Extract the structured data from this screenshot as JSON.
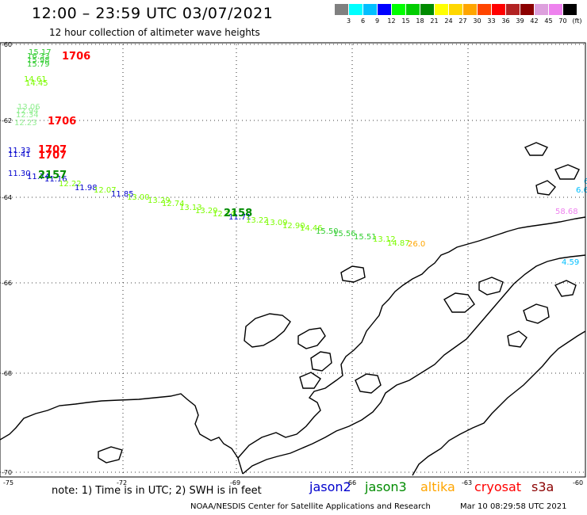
{
  "title": "12:00 – 23:59 UTC 03/07/2021",
  "subtitle": "12 hour collection of altimeter wave heights",
  "scale": {
    "labels": [
      "3",
      "6",
      "9",
      "12",
      "15",
      "18",
      "21",
      "24",
      "27",
      "30",
      "33",
      "36",
      "39",
      "42",
      "45",
      "70",
      "(ft)"
    ],
    "colors": [
      "#808080",
      "#00ffff",
      "#00bfff",
      "#0000ff",
      "#00ff00",
      "#00cd00",
      "#008b00",
      "#ffff00",
      "#ffd700",
      "#ffa500",
      "#ff4500",
      "#ff0000",
      "#b22222",
      "#8b0000",
      "#dda0dd",
      "#ee82ee",
      "#000000"
    ]
  },
  "axes": {
    "lat_labels": [
      "-60",
      "-62",
      "-64",
      "-66",
      "-68",
      "-70"
    ],
    "lon_labels": [
      "-75",
      "-72",
      "-69",
      "-66",
      "-63",
      "-60"
    ]
  },
  "observations": [
    {
      "text": "15.17",
      "color": "#32cd32"
    },
    {
      "text": "16.33",
      "color": "#32cd32"
    },
    {
      "text": "15.98",
      "color": "#32cd32"
    },
    {
      "text": "15.79",
      "color": "#32cd32"
    },
    {
      "text": "14.61",
      "color": "#7cfc00"
    },
    {
      "text": "14.45",
      "color": "#7cfc00"
    },
    {
      "text": "13.06",
      "color": "#90ee90"
    },
    {
      "text": "12.94",
      "color": "#90ee90"
    },
    {
      "text": "12.34",
      "color": "#90ee90"
    },
    {
      "text": "12.23",
      "color": "#90ee90"
    },
    {
      "text": "11.33",
      "color": "#0000cd"
    },
    {
      "text": "11.41",
      "color": "#0000cd"
    },
    {
      "text": "11.30",
      "color": "#0000cd"
    },
    {
      "text": "11.74",
      "color": "#0000cd"
    },
    {
      "text": "11.16",
      "color": "#0000cd"
    },
    {
      "text": "12.22",
      "color": "#7cfc00"
    },
    {
      "text": "11.98",
      "color": "#0000cd"
    },
    {
      "text": "12.07",
      "color": "#7cfc00"
    },
    {
      "text": "11.85",
      "color": "#0000cd"
    },
    {
      "text": "13.00",
      "color": "#7cfc00"
    },
    {
      "text": "13.29",
      "color": "#7cfc00"
    },
    {
      "text": "12.74",
      "color": "#7cfc00"
    },
    {
      "text": "13.13",
      "color": "#7cfc00"
    },
    {
      "text": "13.29",
      "color": "#7cfc00"
    },
    {
      "text": "12.74",
      "color": "#7cfc00"
    },
    {
      "text": "11.71",
      "color": "#0000cd"
    },
    {
      "text": "13.22",
      "color": "#7cfc00"
    },
    {
      "text": "13.09",
      "color": "#7cfc00"
    },
    {
      "text": "12.90",
      "color": "#7cfc00"
    },
    {
      "text": "14.46",
      "color": "#7cfc00"
    },
    {
      "text": "15.50",
      "color": "#32cd32"
    },
    {
      "text": "15.56",
      "color": "#32cd32"
    },
    {
      "text": "15.51",
      "color": "#32cd32"
    },
    {
      "text": "13.12",
      "color": "#7cfc00"
    },
    {
      "text": "14.87",
      "color": "#7cfc00"
    },
    {
      "text": "26.0",
      "color": "#ffa500"
    },
    {
      "text": "6",
      "color": "#00bfff"
    },
    {
      "text": "6.6",
      "color": "#00bfff"
    },
    {
      "text": "58.68",
      "color": "#ee82ee"
    },
    {
      "text": "4.59",
      "color": "#00bfff"
    }
  ],
  "pass_times": [
    {
      "text": "1706",
      "color": "#ff0000"
    },
    {
      "text": "1706",
      "color": "#ff0000"
    },
    {
      "text": "1707",
      "color": "#ff0000"
    },
    {
      "text": "1707",
      "color": "#ff0000"
    },
    {
      "text": "2157",
      "color": "#008b00"
    },
    {
      "text": "2158",
      "color": "#008b00"
    }
  ],
  "note": "note: 1) Time is in UTC; 2) SWH is in feet",
  "satellites": [
    {
      "name": "jason2",
      "color": "#0000cd"
    },
    {
      "name": "jason3",
      "color": "#008b00"
    },
    {
      "name": "altika",
      "color": "#ffa500"
    },
    {
      "name": "cryosat",
      "color": "#ff0000"
    },
    {
      "name": "s3a",
      "color": "#8b0000"
    }
  ],
  "footer": "NOAA/NESDIS Center for Satellite Applications and Research",
  "footer_date": "Mar 10 08:29:58 UTC 2021"
}
